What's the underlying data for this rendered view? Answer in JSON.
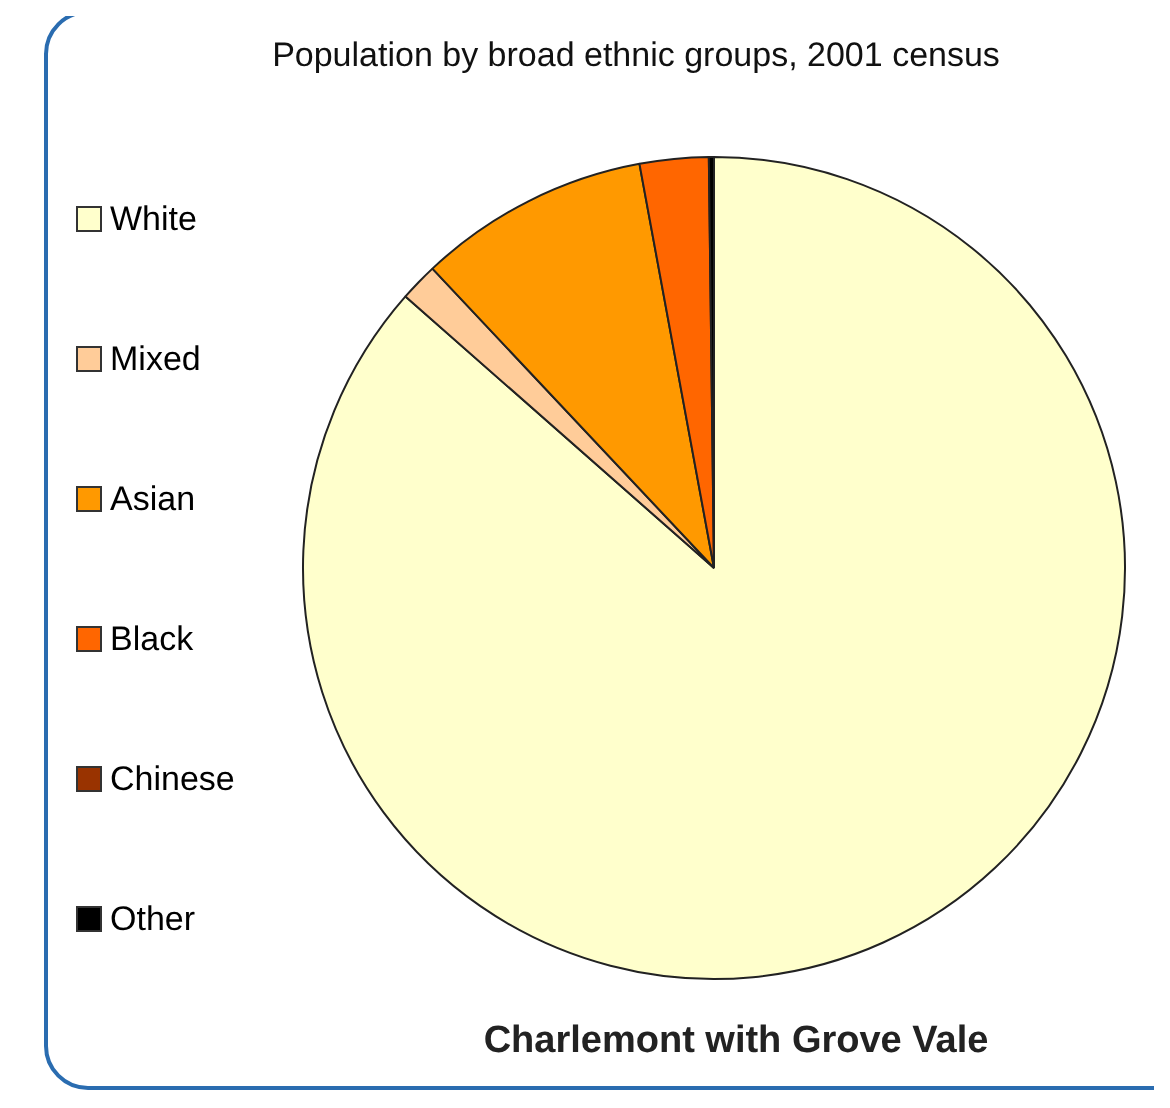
{
  "chart_data": {
    "type": "pie",
    "title": "Population by broad ethnic groups, 2001 census",
    "annotations": [
      "Charlemont with Grove Vale"
    ],
    "categories": [
      "White",
      "Mixed",
      "Asian",
      "Black",
      "Chinese",
      "Other"
    ],
    "values": [
      86.4,
      1.5,
      9.1,
      2.7,
      null,
      0.2
    ],
    "colors": [
      "#ffffcc",
      "#ffcc99",
      "#ff9900",
      "#ff6600",
      "#993300",
      "#000000"
    ],
    "legend": "left"
  }
}
